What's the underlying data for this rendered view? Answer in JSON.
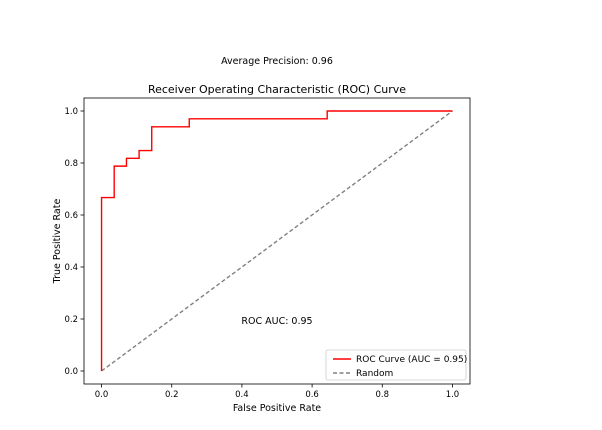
{
  "figure": {
    "suptitle": "Average Precision: 0.96"
  },
  "chart_data": {
    "type": "line",
    "title": "Receiver Operating Characteristic (ROC) Curve",
    "xlabel": "False Positive Rate",
    "ylabel": "True Positive Rate",
    "xlim": [
      -0.05,
      1.05
    ],
    "ylim": [
      -0.05,
      1.05
    ],
    "xticks": [
      "0.0",
      "0.2",
      "0.4",
      "0.6",
      "0.8",
      "1.0"
    ],
    "yticks": [
      "0.0",
      "0.2",
      "0.4",
      "0.6",
      "0.8",
      "1.0"
    ],
    "grid": false,
    "legend_position": "lower-right",
    "annotation": "ROC AUC: 0.95",
    "series": [
      {
        "name": "ROC Curve (AUC = 0.95)",
        "color": "#ff0000",
        "style": "step",
        "x": [
          0.0,
          0.0,
          0.0,
          0.036,
          0.036,
          0.071,
          0.071,
          0.107,
          0.107,
          0.143,
          0.143,
          0.25,
          0.25,
          0.643,
          0.643,
          1.0
        ],
        "y": [
          0.0,
          0.667,
          0.667,
          0.667,
          0.788,
          0.788,
          0.818,
          0.818,
          0.848,
          0.848,
          0.939,
          0.939,
          0.97,
          0.97,
          1.0,
          1.0
        ]
      },
      {
        "name": "Random",
        "color": "#808080",
        "style": "dashed",
        "x": [
          0,
          1
        ],
        "y": [
          0,
          1
        ]
      }
    ]
  }
}
